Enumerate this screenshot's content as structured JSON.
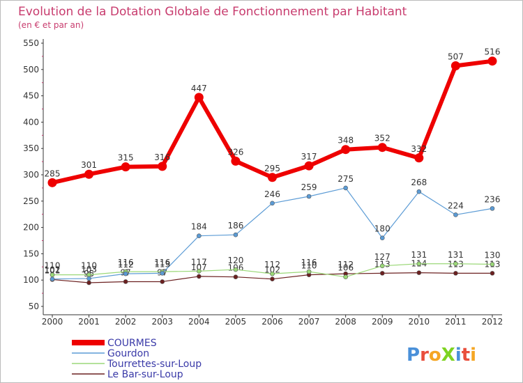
{
  "chart_data": {
    "type": "line",
    "title": "Evolution de la Dotation Globale de Fonctionnement par Habitant",
    "subtitle": "(en € et par an)",
    "xlabel": "",
    "ylabel": "",
    "categories": [
      "2000",
      "2001",
      "2002",
      "2003",
      "2004",
      "2005",
      "2006",
      "2007",
      "2008",
      "2009",
      "2010",
      "2011",
      "2012"
    ],
    "yticks": [
      50,
      100,
      150,
      200,
      250,
      300,
      350,
      400,
      450,
      500,
      550
    ],
    "ylim": [
      50,
      550
    ],
    "grid": false,
    "legend_position": "bottom-left",
    "series": [
      {
        "name": "COURMES",
        "color": "#ee0000",
        "values": [
          285,
          301,
          315,
          316,
          447,
          326,
          295,
          317,
          348,
          352,
          332,
          507,
          516
        ]
      },
      {
        "name": "Gourdon",
        "color": "#5b9bd5",
        "values": [
          102,
          103,
          112,
          113,
          184,
          186,
          246,
          259,
          275,
          180,
          268,
          224,
          236
        ]
      },
      {
        "name": "Tourrettes-sur-Loup",
        "color": "#9bd878",
        "values": [
          110,
          110,
          116,
          116,
          117,
          120,
          112,
          116,
          106,
          127,
          131,
          131,
          130
        ]
      },
      {
        "name": "Le Bar-sur-Loup",
        "color": "#6b2020",
        "values": [
          101,
          95,
          97,
          97,
          107,
          106,
          102,
          110,
          112,
          113,
          114,
          113,
          113
        ]
      }
    ]
  },
  "watermark": "ProXiti"
}
